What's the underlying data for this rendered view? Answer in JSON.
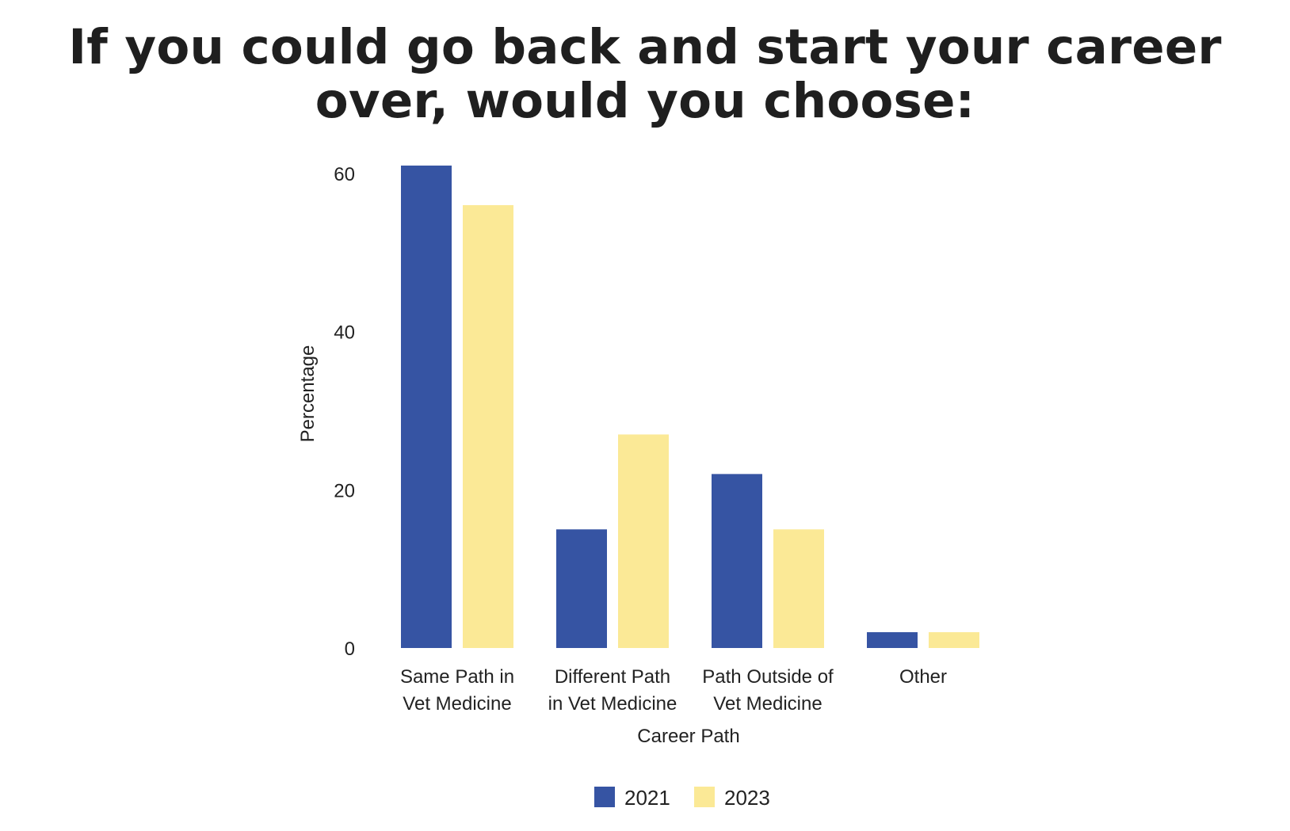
{
  "chart_data": {
    "type": "bar",
    "title": "If you could go back and start your career over, would you choose:",
    "xlabel": "Career Path",
    "ylabel": "Percentage",
    "ylim": [
      0,
      60
    ],
    "yticks": [
      0,
      20,
      40,
      60
    ],
    "grid": false,
    "legend_position": "bottom-center",
    "categories": [
      [
        "Same Path in",
        "Vet Medicine"
      ],
      [
        "Different Path",
        "in Vet Medicine"
      ],
      [
        "Path Outside of",
        "Vet Medicine"
      ],
      [
        "Other"
      ]
    ],
    "series": [
      {
        "name": "2021",
        "color": "#3654a3",
        "values": [
          61,
          15,
          22,
          2
        ]
      },
      {
        "name": "2023",
        "color": "#fbe996",
        "values": [
          56,
          27,
          15,
          2
        ]
      }
    ]
  }
}
